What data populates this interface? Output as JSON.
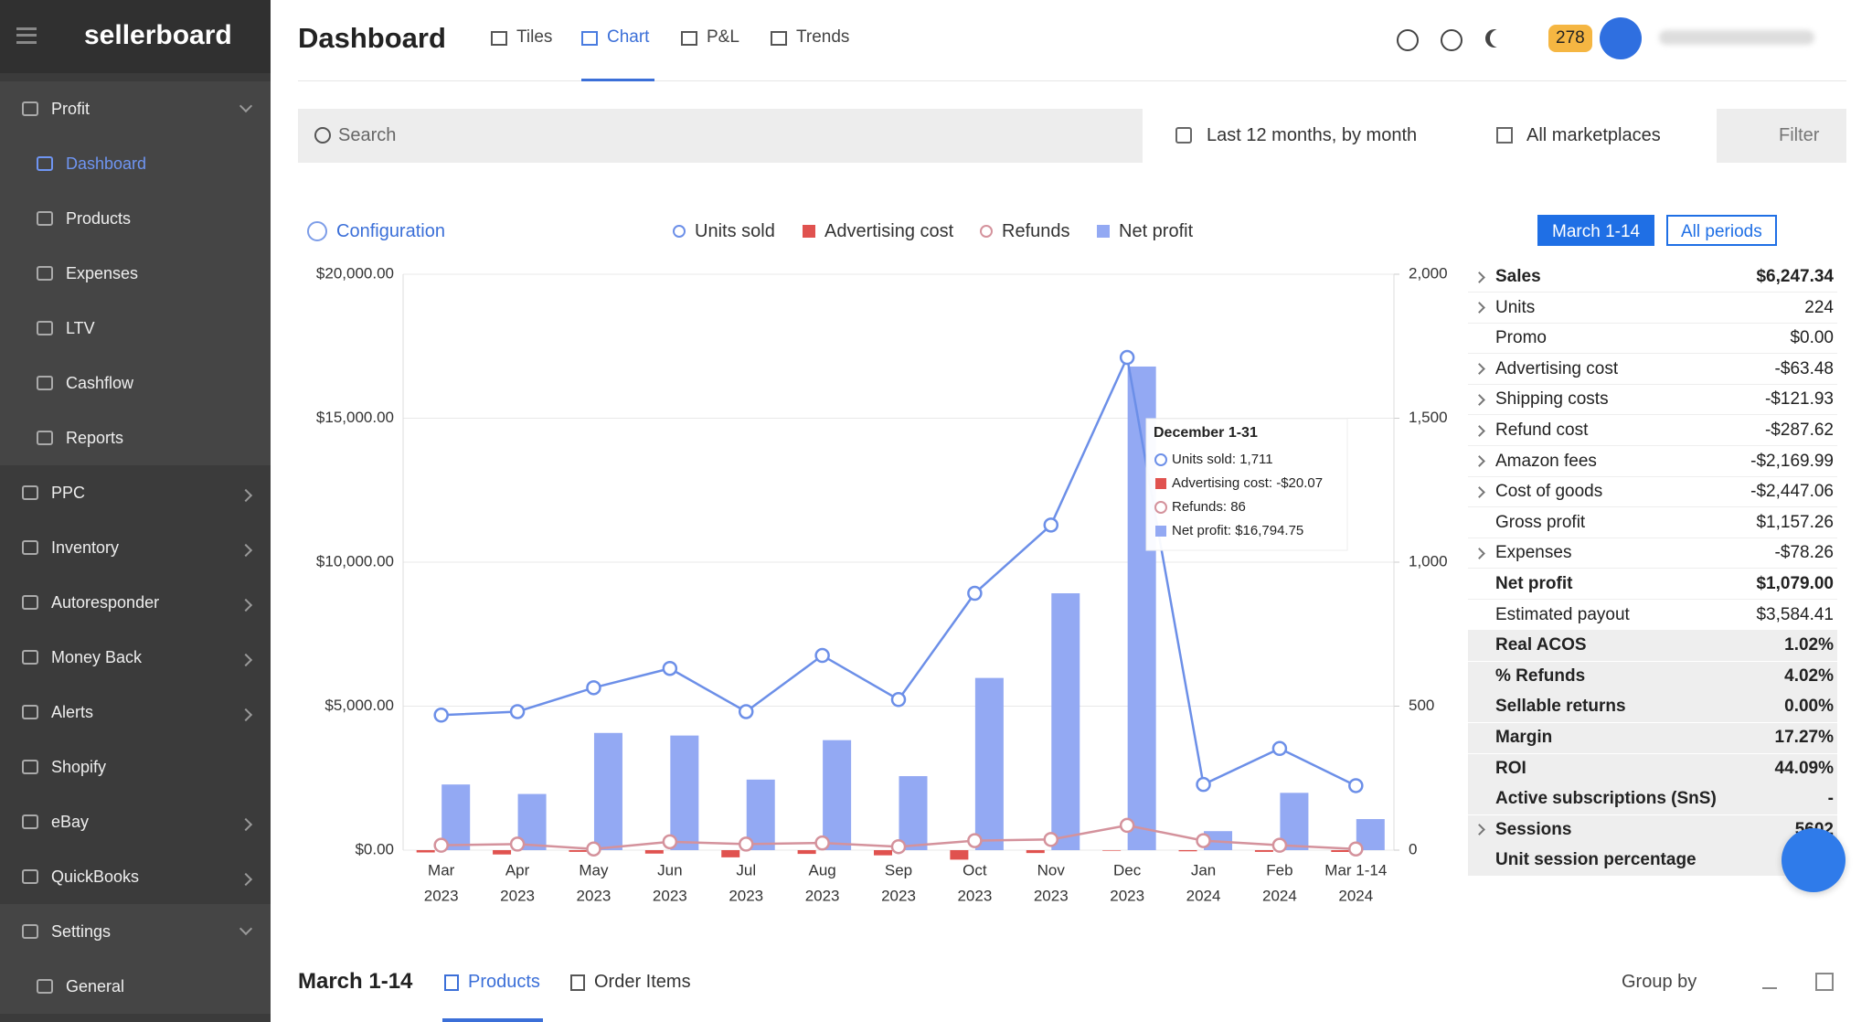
{
  "sidebar": {
    "logo": "sellerboard",
    "items": [
      {
        "label": "Profit",
        "chevron": "down",
        "group": true
      },
      {
        "label": "Dashboard",
        "sub": true,
        "active": true
      },
      {
        "label": "Products",
        "sub": true
      },
      {
        "label": "Expenses",
        "sub": true
      },
      {
        "label": "LTV",
        "sub": true
      },
      {
        "label": "Cashflow",
        "sub": true
      },
      {
        "label": "Reports",
        "sub": true
      },
      {
        "label": "PPC",
        "chevron": "right"
      },
      {
        "label": "Inventory",
        "chevron": "right"
      },
      {
        "label": "Autoresponder",
        "chevron": "right"
      },
      {
        "label": "Money Back",
        "chevron": "right"
      },
      {
        "label": "Alerts",
        "chevron": "right"
      },
      {
        "label": "Shopify"
      },
      {
        "label": "eBay",
        "chevron": "right"
      },
      {
        "label": "QuickBooks",
        "chevron": "right"
      },
      {
        "label": "Settings",
        "chevron": "down",
        "group": true
      },
      {
        "label": "General",
        "sub": true
      }
    ]
  },
  "header": {
    "title": "Dashboard",
    "tabs": [
      {
        "label": "Tiles"
      },
      {
        "label": "Chart",
        "active": true
      },
      {
        "label": "P&L"
      },
      {
        "label": "Trends"
      }
    ],
    "notifications": 278
  },
  "toolbar": {
    "search": "Search",
    "period": "Last 12 months, by month",
    "marketplace": "All marketplaces",
    "filter": "Filter"
  },
  "controls": {
    "configuration": "Configuration",
    "period_buttons": [
      {
        "label": "March 1-14",
        "active": true
      },
      {
        "label": "All periods"
      }
    ]
  },
  "chart_data": {
    "type": "combo",
    "categories": [
      [
        "Mar",
        "2023"
      ],
      [
        "Apr",
        "2023"
      ],
      [
        "May",
        "2023"
      ],
      [
        "Jun",
        "2023"
      ],
      [
        "Jul",
        "2023"
      ],
      [
        "Aug",
        "2023"
      ],
      [
        "Sep",
        "2023"
      ],
      [
        "Oct",
        "2023"
      ],
      [
        "Nov",
        "2023"
      ],
      [
        "Dec",
        "2023"
      ],
      [
        "Jan",
        "2024"
      ],
      [
        "Feb",
        "2024"
      ],
      [
        "Mar 1-14",
        "2024"
      ]
    ],
    "series": [
      {
        "name": "Units sold",
        "type": "line",
        "axis": "y2",
        "color": "#6c8fe8",
        "values": [
          469,
          481,
          564,
          631,
          481,
          676,
          523,
          892,
          1129,
          1711,
          228,
          353,
          224
        ]
      },
      {
        "name": "Advertising cost",
        "type": "bar",
        "color": "#e0524f",
        "values": [
          -80,
          -150,
          -60,
          -120,
          -250,
          -130,
          -180,
          -330,
          -100,
          -20.07,
          -40,
          -60,
          -63.48
        ]
      },
      {
        "name": "Refunds",
        "type": "line",
        "axis": "y2",
        "color": "#d4929c",
        "values": [
          17,
          21,
          4,
          29,
          21,
          25,
          12,
          33,
          37,
          86,
          33,
          17,
          4
        ]
      },
      {
        "name": "Net profit",
        "type": "bar",
        "color": "#93a9f3",
        "values": [
          2280,
          1950,
          4070,
          3980,
          2450,
          3820,
          2570,
          5980,
          8920,
          16794.75,
          660,
          1990,
          1079
        ]
      }
    ],
    "ylim": [
      0,
      20000
    ],
    "yticks": [
      {
        "value": 0,
        "label": "$0.00"
      },
      {
        "value": 5000,
        "label": "$5,000.00"
      },
      {
        "value": 10000,
        "label": "$10,000.00"
      },
      {
        "value": 15000,
        "label": "$15,000.00"
      },
      {
        "value": 20000,
        "label": "$20,000.00"
      }
    ],
    "y2lim": [
      0,
      2000
    ],
    "y2ticks": [
      0,
      500,
      {
        "value": 1000,
        "label": "1,000"
      },
      {
        "value": 1500,
        "label": "1,500"
      },
      {
        "value": 2000,
        "label": "2,000"
      }
    ],
    "grid": true,
    "tooltip": {
      "title": "December 1-31",
      "items": [
        "Units sold: 1,711",
        "Advertising cost: -$20.07",
        "Refunds: 86",
        "Net profit: $16,794.75"
      ]
    }
  },
  "summary": [
    {
      "label": "Sales",
      "value": "$6,247.34",
      "bold": true,
      "expandable": true
    },
    {
      "label": "Units",
      "value": "224",
      "expandable": true
    },
    {
      "label": "Promo",
      "value": "$0.00"
    },
    {
      "label": "Advertising cost",
      "value": "-$63.48",
      "expandable": true
    },
    {
      "label": "Shipping costs",
      "value": "-$121.93",
      "expandable": true
    },
    {
      "label": "Refund cost",
      "value": "-$287.62",
      "expandable": true
    },
    {
      "label": "Amazon fees",
      "value": "-$2,169.99",
      "expandable": true
    },
    {
      "label": "Cost of goods",
      "value": "-$2,447.06",
      "expandable": true
    },
    {
      "label": "Gross profit",
      "value": "$1,157.26"
    },
    {
      "label": "Expenses",
      "value": "-$78.26",
      "expandable": true
    },
    {
      "label": "Net profit",
      "value": "$1,079.00",
      "bold": true
    },
    {
      "label": "Estimated payout",
      "value": "$3,584.41"
    },
    {
      "label": "Real ACOS",
      "value": "1.02%",
      "bold": true,
      "shaded": true
    },
    {
      "label": "% Refunds",
      "value": "4.02%",
      "bold": true,
      "shaded": true
    },
    {
      "label": "Sellable returns",
      "value": "0.00%",
      "bold": true,
      "shaded": true
    },
    {
      "label": "Margin",
      "value": "17.27%",
      "bold": true,
      "shaded": true
    },
    {
      "label": "ROI",
      "value": "44.09%",
      "bold": true,
      "shaded": true
    },
    {
      "label": "Active subscriptions (SnS)",
      "value": "-",
      "bold": true,
      "shaded": true
    },
    {
      "label": "Sessions",
      "value": "5602",
      "bold": true,
      "shaded": true,
      "expandable": true
    },
    {
      "label": "Unit session percentage",
      "bold": true,
      "shaded": true
    }
  ],
  "bottom": {
    "title": "March 1-14",
    "tabs": [
      {
        "label": "Products",
        "active": true
      },
      {
        "label": "Order Items"
      }
    ],
    "group_by": "Group by"
  }
}
